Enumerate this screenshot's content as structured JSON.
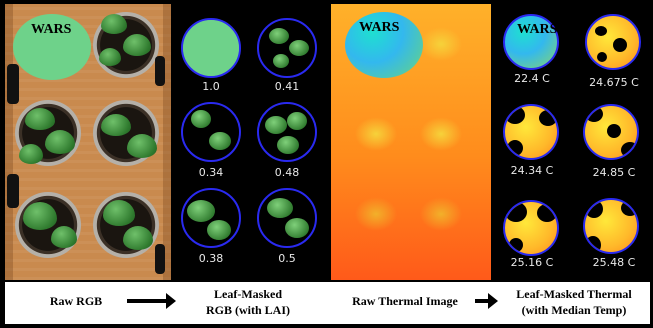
{
  "labels": {
    "wars_rgb": "WARS",
    "wars_thermal": "WARS",
    "wars_masked_thermal": "WARS"
  },
  "lai_values": [
    "1.0",
    "0.41",
    "0.34",
    "0.48",
    "0.38",
    "0.5"
  ],
  "median_temps": [
    "22.4 C",
    "24.675 C",
    "24.34 C",
    "24.85 C",
    "25.16 C",
    "25.48 C"
  ],
  "captions": {
    "raw_rgb": "Raw RGB",
    "leaf_masked_rgb_line1": "Leaf-Masked",
    "leaf_masked_rgb_line2": "RGB (with LAI)",
    "raw_thermal": "Raw Thermal Image",
    "leaf_masked_thermal_line1": "Leaf-Masked Thermal",
    "leaf_masked_thermal_line2": "(with Median Temp)"
  },
  "colors": {
    "circle_outline": "#2a2af0",
    "leaf_green": "#2f7a2e",
    "thermal_hot": "#ff5a1a",
    "thermal_warm": "#ffb12a",
    "reference_disk": "#6ed28a"
  }
}
